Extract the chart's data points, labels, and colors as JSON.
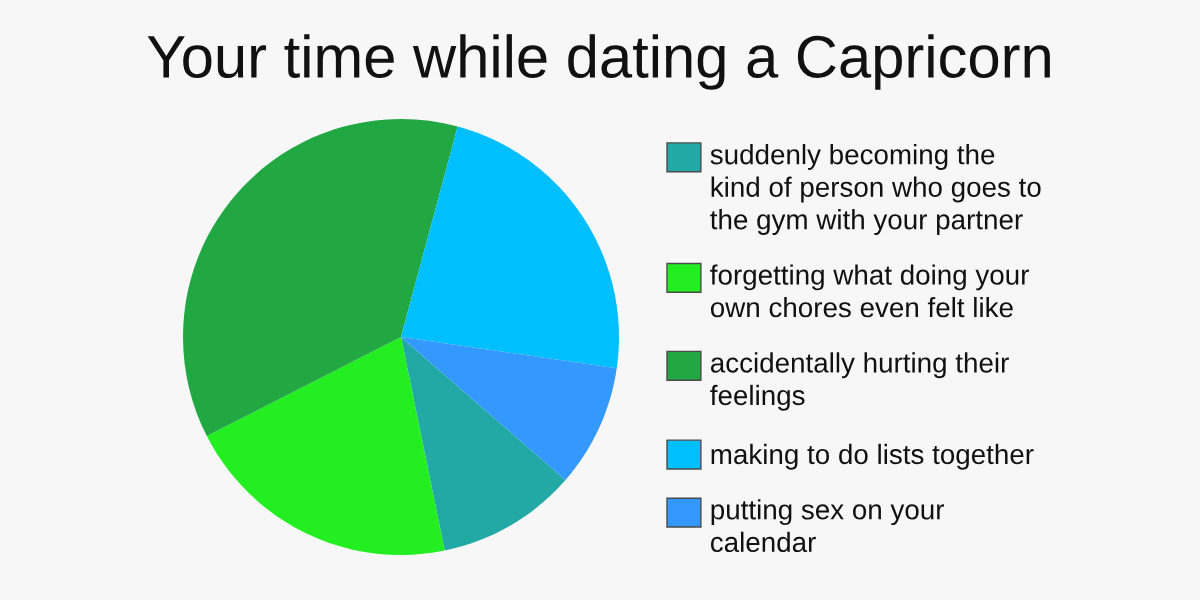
{
  "chart_data": {
    "type": "pie",
    "title": "Your time while dating a Capricorn",
    "categories": [
      "suddenly becoming the\nkind of person who goes to\nthe gym with your partner",
      "forgetting what doing your\nown chores even felt like",
      "accidentally hurting their\nfeelings",
      "making to do lists together",
      "putting sex on your\ncalendar"
    ],
    "values": [
      10.4,
      20.7,
      36.7,
      23.1,
      9.1
    ],
    "colors": [
      "#22a9a6",
      "#22ee22",
      "#22a843",
      "#00bfff",
      "#3399ff"
    ],
    "legend": "right"
  }
}
